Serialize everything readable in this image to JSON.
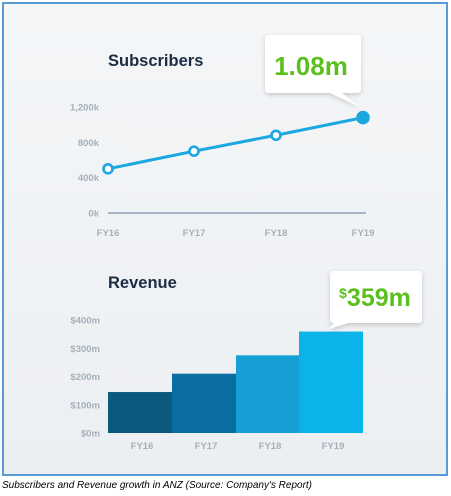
{
  "caption": "Subscribers and Revenue growth in ANZ (Source: Company's Report)",
  "colors": {
    "line": "#1ba7e0",
    "axis": "#7a8fa8",
    "callout_text": "#5bbf1d",
    "title": "#1c2c44",
    "tick": "#a6b0bb",
    "bars": [
      "#0b5a7e",
      "#0a6fa0",
      "#159fd4",
      "#0ab3e8"
    ]
  },
  "chart_data": [
    {
      "type": "line",
      "title": "Subscribers",
      "categories": [
        "FY16",
        "FY17",
        "FY18",
        "FY19"
      ],
      "values": [
        500,
        700,
        880,
        1080
      ],
      "ylim": [
        0,
        1200
      ],
      "yticks": [
        0,
        400,
        800,
        1200
      ],
      "yticklabels": [
        "0k",
        "400k",
        "800k",
        "1,200k"
      ],
      "callout": "1.08m",
      "grid": false,
      "xlabel": "",
      "ylabel": ""
    },
    {
      "type": "bar",
      "title": "Revenue",
      "categories": [
        "FY16",
        "FY17",
        "FY18",
        "FY19"
      ],
      "values": [
        145,
        210,
        275,
        359
      ],
      "ylim": [
        0,
        400
      ],
      "yticks": [
        0,
        100,
        200,
        300,
        400
      ],
      "yticklabels": [
        "$0m",
        "$100m",
        "$200m",
        "$300m",
        "$400m"
      ],
      "callout_prefix": "$",
      "callout": "359m",
      "grid": false,
      "xlabel": "",
      "ylabel": ""
    }
  ]
}
